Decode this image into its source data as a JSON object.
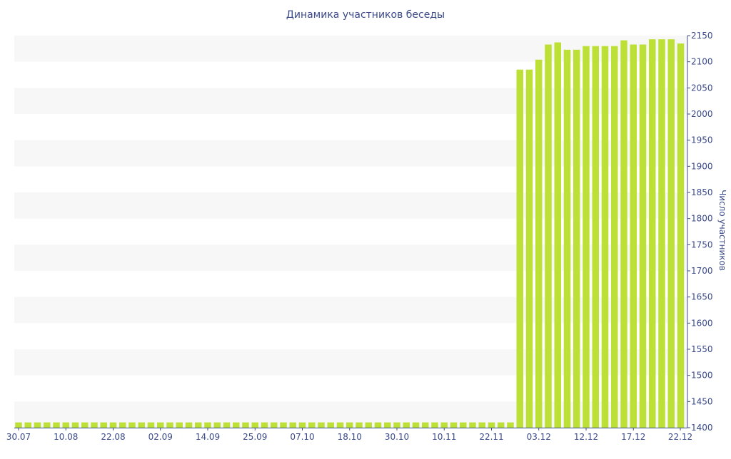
{
  "chart_data": {
    "type": "bar",
    "title": "Динамика участников беседы",
    "ylabel": "Число участников",
    "xlabel": "",
    "ylim": [
      1400,
      2150
    ],
    "yticks": [
      1400,
      1450,
      1500,
      1550,
      1600,
      1650,
      1700,
      1750,
      1800,
      1850,
      1900,
      1950,
      2000,
      2050,
      2100,
      2150
    ],
    "xtick_labels": [
      "30.07",
      "10.08",
      "22.08",
      "02.09",
      "14.09",
      "25.09",
      "07.10",
      "18.10",
      "30.10",
      "10.11",
      "22.11",
      "03.12",
      "12.12",
      "17.12",
      "22.12"
    ],
    "xtick_bar_index": [
      0,
      5,
      10,
      15,
      20,
      25,
      30,
      35,
      40,
      45,
      50,
      55,
      60,
      65,
      70
    ],
    "values": [
      1410,
      1410,
      1410,
      1410,
      1410,
      1410,
      1410,
      1410,
      1410,
      1410,
      1410,
      1410,
      1410,
      1410,
      1410,
      1410,
      1410,
      1410,
      1410,
      1410,
      1410,
      1410,
      1410,
      1410,
      1410,
      1410,
      1410,
      1410,
      1410,
      1410,
      1410,
      1410,
      1410,
      1410,
      1410,
      1410,
      1410,
      1410,
      1410,
      1410,
      1410,
      1410,
      1410,
      1410,
      1410,
      1410,
      1410,
      1410,
      1410,
      1410,
      1410,
      1410,
      1410,
      2085,
      2085,
      2104,
      2133,
      2137,
      2123,
      2123,
      2130,
      2130,
      2130,
      2130,
      2141,
      2133,
      2133,
      2143,
      2143,
      2143,
      2135
    ],
    "bar_color": "#bde036",
    "band_color": "#f7f7f7",
    "text_color": "#3b4a8a",
    "axis_side": "right",
    "grid": "alternating horizontal bands"
  }
}
